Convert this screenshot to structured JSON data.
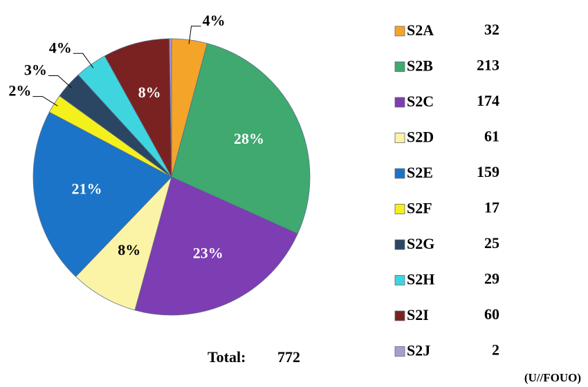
{
  "chart_data": {
    "type": "pie",
    "categories": [
      "S2A",
      "S2B",
      "S2C",
      "S2D",
      "S2E",
      "S2F",
      "S2G",
      "S2H",
      "S2I",
      "S2J"
    ],
    "values": [
      32,
      213,
      174,
      61,
      159,
      17,
      25,
      29,
      60,
      2
    ],
    "value_labels": [
      "4%",
      "28%",
      "23%",
      "8%",
      "21%",
      "2%",
      "3%",
      "4%",
      "8%",
      null
    ],
    "colors": [
      "#f5a42a",
      "#3fa96f",
      "#7d3db3",
      "#fbf3a6",
      "#1c74c9",
      "#f3f01c",
      "#2b4662",
      "#3fd5df",
      "#7a2222",
      "#a89bd8"
    ],
    "total_label": "Total:",
    "total": 772,
    "footer": "(U//FOUO)"
  }
}
